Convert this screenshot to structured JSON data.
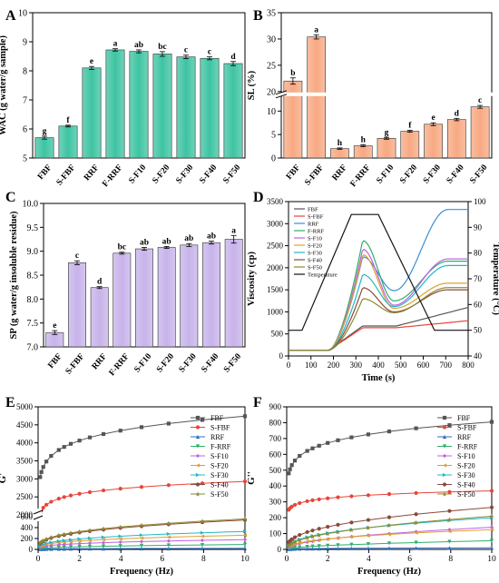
{
  "chart_data": [
    {
      "panel": "A",
      "type": "bar",
      "ylabel": "WAC (g water/g sample)",
      "categories": [
        "FBF",
        "S-FBF",
        "RRF",
        "F-RRF",
        "S-F10",
        "S-F20",
        "S-F30",
        "S-F40",
        "S-F50"
      ],
      "values": [
        5.7,
        6.1,
        8.1,
        8.72,
        8.67,
        8.58,
        8.48,
        8.43,
        8.25
      ],
      "errors": [
        0.05,
        0.03,
        0.05,
        0.04,
        0.05,
        0.08,
        0.06,
        0.05,
        0.07
      ],
      "sig_letters": [
        "g",
        "f",
        "e",
        "a",
        "ab",
        "bc",
        "c",
        "c",
        "d"
      ],
      "ylim": [
        5,
        10
      ],
      "yticks": [
        "5",
        "6",
        "7",
        "8",
        "9",
        "10"
      ],
      "bar_color": "#3ec4a2"
    },
    {
      "panel": "B",
      "type": "bar",
      "ylabel": "SL (%)",
      "categories": [
        "FBF",
        "S-FBF",
        "RRF",
        "F-RRF",
        "S-F10",
        "S-F20",
        "S-F30",
        "S-F40",
        "S-F50"
      ],
      "values": [
        22,
        30.4,
        2.0,
        2.6,
        4.2,
        5.7,
        7.2,
        8.2,
        10.9
      ],
      "errors": [
        0.6,
        0.4,
        0.15,
        0.2,
        0.2,
        0.2,
        0.3,
        0.25,
        0.3
      ],
      "sig_letters": [
        "b",
        "a",
        "h",
        "h",
        "g",
        "f",
        "e",
        "d",
        "c"
      ],
      "axis_break": [
        13,
        20
      ],
      "ylim": [
        0,
        35
      ],
      "yticks": [
        "0",
        "5",
        "10",
        "20",
        "25",
        "30",
        "35"
      ],
      "bar_color": "#f7a982"
    },
    {
      "panel": "C",
      "type": "bar",
      "ylabel": "SP (g water/g insoluble residue)",
      "categories": [
        "FBF",
        "S-FBF",
        "RRF",
        "F-RRF",
        "S-F10",
        "S-F20",
        "S-F30",
        "S-F40",
        "S-F50"
      ],
      "values": [
        7.3,
        8.76,
        8.24,
        8.96,
        9.05,
        9.08,
        9.13,
        9.18,
        9.25
      ],
      "errors": [
        0.04,
        0.04,
        0.02,
        0.02,
        0.03,
        0.02,
        0.03,
        0.03,
        0.08
      ],
      "sig_letters": [
        "e",
        "c",
        "d",
        "bc",
        "ab",
        "ab",
        "ab",
        "ab",
        "a"
      ],
      "ylim": [
        7.0,
        10.0
      ],
      "yticks": [
        "7.0",
        "7.5",
        "8.0",
        "8.5",
        "9.0",
        "9.5",
        "10.0"
      ],
      "bar_color": "#c7b3ea"
    },
    {
      "panel": "D",
      "type": "line",
      "xlabel": "Time (s)",
      "ylabel": "Viscosity (cp)",
      "y2label": "Temperature (°C)",
      "xlim": [
        0,
        800
      ],
      "ylim": [
        0,
        3500
      ],
      "y2lim": [
        40,
        100
      ],
      "xticks": [
        "0",
        "100",
        "200",
        "300",
        "400",
        "500",
        "600",
        "700",
        "800"
      ],
      "yticks": [
        "0",
        "500",
        "1000",
        "1500",
        "2000",
        "2500",
        "3000",
        "3500"
      ],
      "y2ticks": [
        "40",
        "50",
        "60",
        "70",
        "80",
        "90",
        "100"
      ],
      "series": [
        {
          "name": "FBF",
          "color": "#555555",
          "peak": 0,
          "trough": 0,
          "final": 0,
          "hold": 680,
          "end": 1100
        },
        {
          "name": "S-FBF",
          "color": "#e8443a",
          "peak": 0,
          "trough": 0,
          "final": 0,
          "hold": 640,
          "end": 800
        },
        {
          "name": "RRF",
          "color": "#3a8fd9",
          "peak": 2250,
          "trough": 1480,
          "final": 3320,
          "hold": 0,
          "end": 0
        },
        {
          "name": "F-RRF",
          "color": "#2fae6c",
          "peak": 2620,
          "trough": 1250,
          "final": 2150,
          "hold": 0,
          "end": 0
        },
        {
          "name": "S-F10",
          "color": "#c060e0",
          "peak": 2420,
          "trough": 1150,
          "final": 2200,
          "hold": 0,
          "end": 0
        },
        {
          "name": "S-F20",
          "color": "#e0a030",
          "peak": 2300,
          "trough": 1080,
          "final": 1650,
          "hold": 0,
          "end": 0
        },
        {
          "name": "S-F30",
          "color": "#20b8c8",
          "peak": 1850,
          "trough": 1120,
          "final": 2050,
          "hold": 0,
          "end": 0
        },
        {
          "name": "S-F40",
          "color": "#8b4a3a",
          "peak": 1550,
          "trough": 1000,
          "final": 1500,
          "hold": 0,
          "end": 0
        },
        {
          "name": "S-F50",
          "color": "#8a8a30",
          "peak": 1300,
          "trough": 980,
          "final": 1550,
          "hold": 0,
          "end": 0
        }
      ],
      "temperature": {
        "name": "Temperature",
        "time": [
          0,
          60,
          280,
          400,
          650,
          800
        ],
        "temp": [
          50,
          50,
          95,
          95,
          50,
          50
        ]
      }
    },
    {
      "panel": "E",
      "type": "line",
      "xlabel": "Frequency (Hz)",
      "ylabel": "G'",
      "xlim": [
        0,
        10
      ],
      "xticks": [
        "0",
        "2",
        "4",
        "6",
        "8",
        "10"
      ],
      "yticks_lower": [
        "0",
        "200",
        "400",
        "600"
      ],
      "yticks_upper": [
        "2000",
        "2500",
        "3000",
        "3500",
        "4000",
        "4500",
        "5000"
      ],
      "axis_break": [
        700,
        1900
      ],
      "series": [
        {
          "name": "FBF",
          "color": "#555555",
          "marker": "square",
          "v01": 3050,
          "v10": 4740
        },
        {
          "name": "S-FBF",
          "color": "#e8443a",
          "marker": "circle",
          "v01": 2050,
          "v10": 2930
        },
        {
          "name": "RRF",
          "color": "#2f6fc8",
          "marker": "triangle",
          "v01": 5,
          "v10": 20
        },
        {
          "name": "F-RRF",
          "color": "#2fae6c",
          "marker": "triangle-down",
          "v01": 15,
          "v10": 90
        },
        {
          "name": "S-F10",
          "color": "#c060e0",
          "marker": "diamond",
          "v01": 40,
          "v10": 180
        },
        {
          "name": "S-F20",
          "color": "#e0a030",
          "marker": "triangle-left",
          "v01": 60,
          "v10": 260
        },
        {
          "name": "S-F30",
          "color": "#20b8c8",
          "marker": "triangle-right",
          "v01": 70,
          "v10": 330
        },
        {
          "name": "S-F40",
          "color": "#8b4a3a",
          "marker": "hexagon",
          "v01": 110,
          "v10": 540
        },
        {
          "name": "S-F50",
          "color": "#8a8a30",
          "marker": "star",
          "v01": 120,
          "v10": 560
        }
      ]
    },
    {
      "panel": "F",
      "type": "line",
      "xlabel": "Frequency (Hz)",
      "ylabel": "G''",
      "xlim": [
        0,
        10
      ],
      "ylim": [
        0,
        900
      ],
      "xticks": [
        "0",
        "2",
        "4",
        "6",
        "8",
        "10"
      ],
      "yticks": [
        "0",
        "100",
        "200",
        "300",
        "400",
        "500",
        "600",
        "700",
        "800",
        "900"
      ],
      "series": [
        {
          "name": "FBF",
          "color": "#555555",
          "marker": "square",
          "v01": 480,
          "v10": 805
        },
        {
          "name": "S-FBF",
          "color": "#e8443a",
          "marker": "circle",
          "v01": 250,
          "v10": 370
        },
        {
          "name": "RRF",
          "color": "#2f6fc8",
          "marker": "triangle",
          "v01": 2,
          "v10": 10
        },
        {
          "name": "F-RRF",
          "color": "#2fae6c",
          "marker": "triangle-down",
          "v01": 5,
          "v10": 55
        },
        {
          "name": "S-F10",
          "color": "#c060e0",
          "marker": "diamond",
          "v01": 15,
          "v10": 140
        },
        {
          "name": "S-F20",
          "color": "#e0a030",
          "marker": "triangle-left",
          "v01": 20,
          "v10": 125
        },
        {
          "name": "S-F30",
          "color": "#20b8c8",
          "marker": "triangle-right",
          "v01": 30,
          "v10": 200
        },
        {
          "name": "S-F40",
          "color": "#8b4a3a",
          "marker": "hexagon",
          "v01": 45,
          "v10": 265
        },
        {
          "name": "S-F50",
          "color": "#8a8a30",
          "marker": "star",
          "v01": 25,
          "v10": 210
        }
      ]
    }
  ]
}
